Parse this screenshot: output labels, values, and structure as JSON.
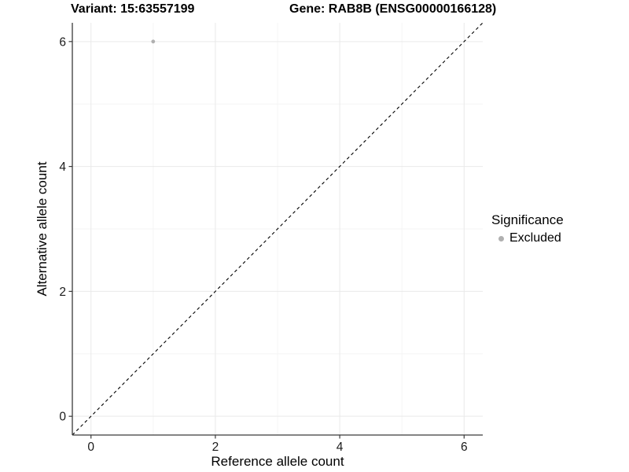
{
  "chart_data": {
    "type": "scatter",
    "titles": [
      {
        "text": "Variant: 15:63557199"
      },
      {
        "text": "Gene: RAB8B (ENSG00000166128)"
      }
    ],
    "xlabel": "Reference allele count",
    "ylabel": "Alternative allele count",
    "x_ticks": [
      0,
      2,
      4,
      6
    ],
    "y_ticks": [
      0,
      2,
      4,
      6
    ],
    "x_minor_ticks": [
      1,
      3,
      5
    ],
    "y_minor_ticks": [
      1,
      3,
      5
    ],
    "xlim": [
      -0.3,
      6.3
    ],
    "ylim": [
      -0.3,
      6.3
    ],
    "grid": true,
    "points": [
      {
        "x": 1,
        "y": 6,
        "series": "Excluded"
      }
    ],
    "reference_line": {
      "slope": 1,
      "intercept": 0,
      "style": "dashed",
      "color": "#000000"
    },
    "legend": {
      "title": "Significance",
      "position": "right",
      "items": [
        {
          "label": "Excluded",
          "color": "#b0b0b0",
          "marker": "circle"
        }
      ]
    },
    "colors": {
      "point": "#b0b0b0",
      "grid_major": "#e9e9e9",
      "grid_minor": "#f4f4f4",
      "axis": "#3a3a3a",
      "tick_text": "#1a1a1a"
    }
  }
}
